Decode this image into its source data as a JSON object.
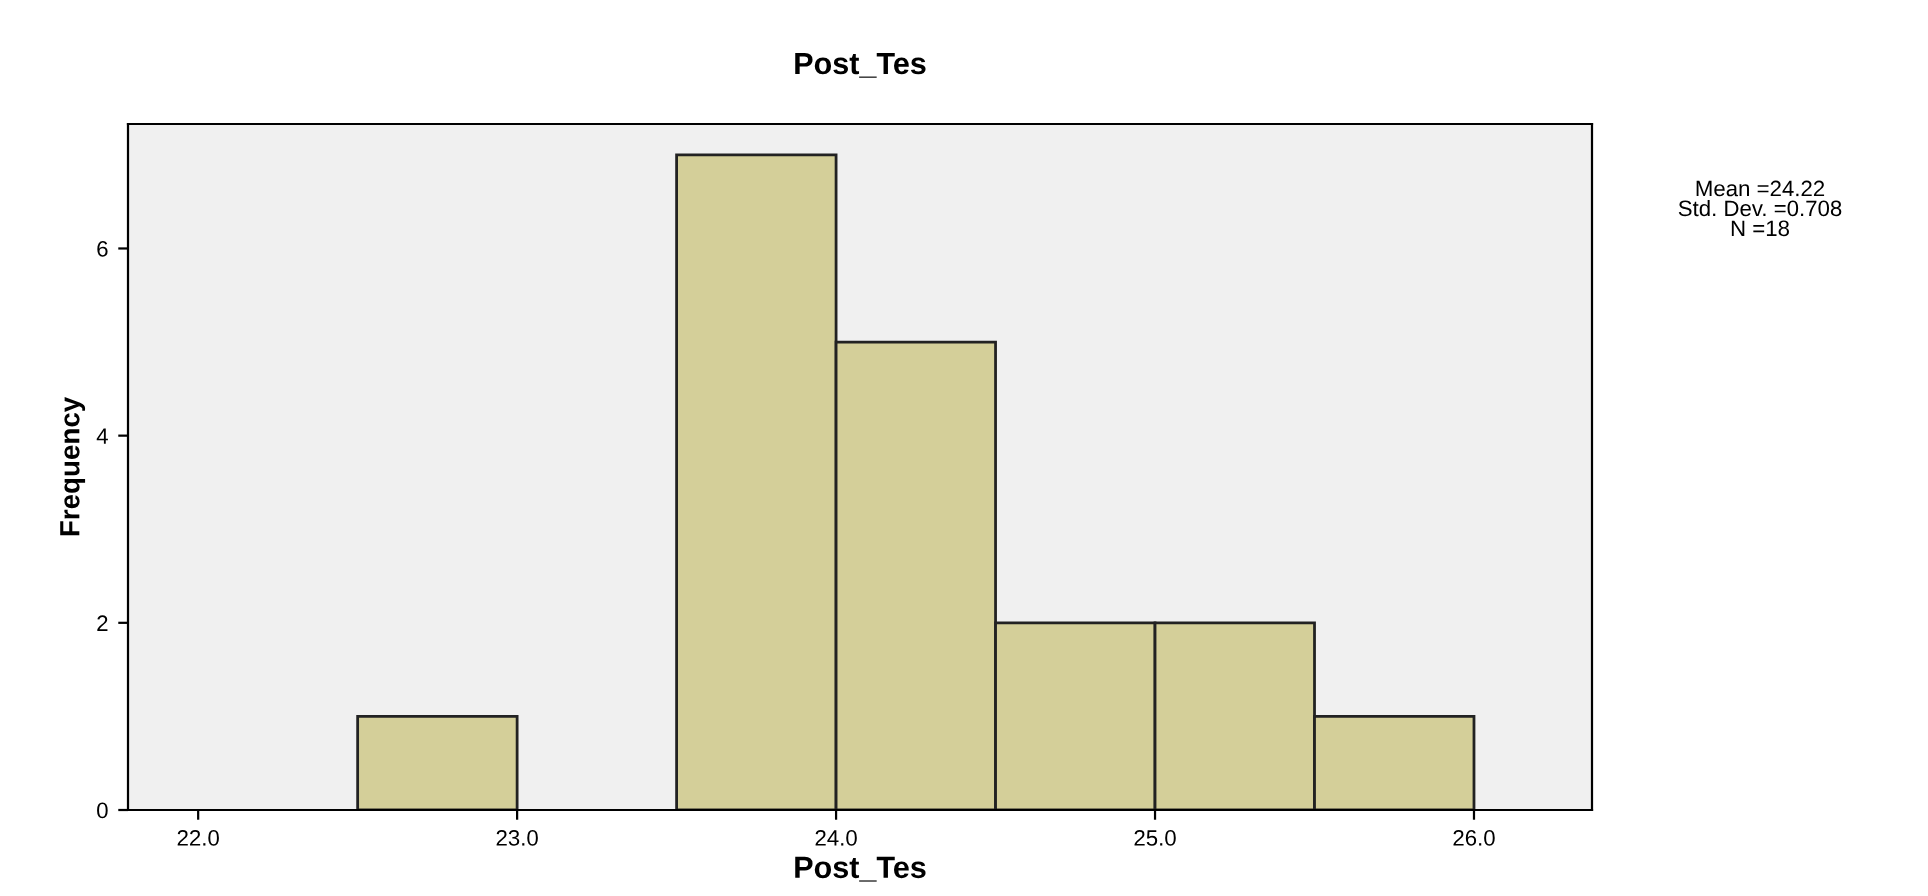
{
  "chart_data": {
    "type": "histogram",
    "title": "Post_Tes",
    "xlabel": "Post_Tes",
    "ylabel": "Frequency",
    "bins": [
      22.5,
      23.0,
      23.5,
      24.0,
      24.5,
      25.0,
      25.5,
      26.0
    ],
    "values": [
      1,
      0,
      7,
      5,
      2,
      2,
      1
    ],
    "color": "#d4cf99",
    "xlim": [
      21.78,
      26.37
    ],
    "ylim": [
      0,
      7.33
    ],
    "xticks": [
      {
        "value": 22,
        "label": "22.0"
      },
      {
        "value": 23,
        "label": "23.0"
      },
      {
        "value": 24,
        "label": "24.0"
      },
      {
        "value": 25,
        "label": "25.0"
      },
      {
        "value": 26,
        "label": "26.0"
      }
    ],
    "yticks": [
      0,
      2,
      4,
      6
    ],
    "grid": false,
    "annotations": [
      "Mean =24.22\nStd. Dev. =0.708\nN =18"
    ]
  }
}
